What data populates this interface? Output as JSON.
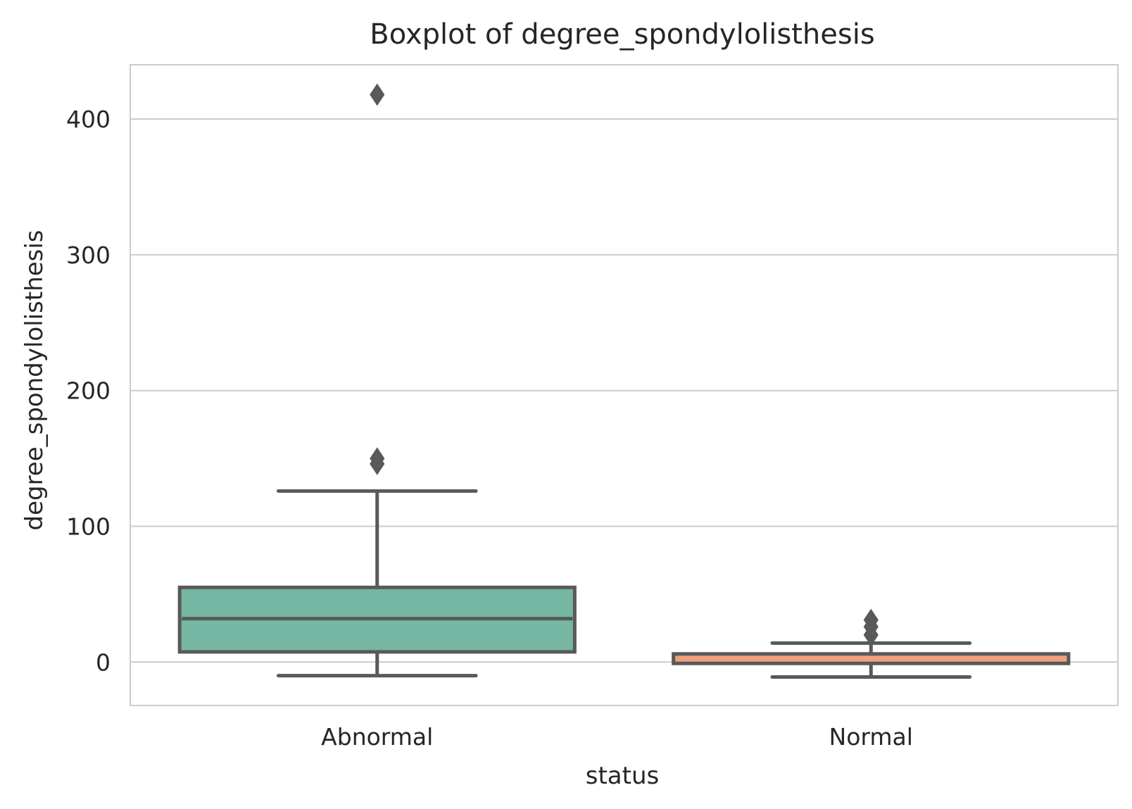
{
  "chart_data": {
    "type": "boxplot",
    "title": "Boxplot of degree_spondylolisthesis",
    "xlabel": "status",
    "ylabel": "degree_spondylolisthesis",
    "categories": [
      "Abnormal",
      "Normal"
    ],
    "ylim": [
      -32,
      440
    ],
    "yticks": [
      0,
      100,
      200,
      300,
      400
    ],
    "grid": true,
    "boxes": [
      {
        "category": "Abnormal",
        "whisker_low": -10,
        "q1": 7.5,
        "median": 32,
        "q3": 55,
        "whisker_high": 126,
        "fliers": [
          418,
          150,
          146
        ],
        "color": "#75b7a3"
      },
      {
        "category": "Normal",
        "whisker_low": -11,
        "q1": -1,
        "median": 3,
        "q3": 6,
        "whisker_high": 14,
        "fliers": [
          20,
          26,
          31
        ],
        "color": "#f1a07e"
      }
    ],
    "colors": {
      "box_edge": "#595959",
      "grid": "#cccccc",
      "spine": "#cccccc",
      "text": "#262626"
    }
  }
}
